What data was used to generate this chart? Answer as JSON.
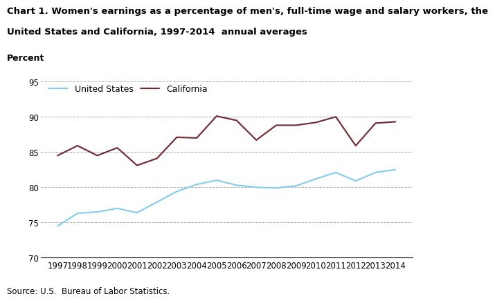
{
  "title_line1": "Chart 1. Women's earnings as a percentage of men's, full-time wage and salary workers, the",
  "title_line2": "United States and California, 1997-2014  annual averages",
  "ylabel": "Percent",
  "source": "Source: U.S.  Bureau of Labor Statistics.",
  "years": [
    1997,
    1998,
    1999,
    2000,
    2001,
    2002,
    2003,
    2004,
    2005,
    2006,
    2007,
    2008,
    2009,
    2010,
    2011,
    2012,
    2013,
    2014
  ],
  "us_values": [
    74.5,
    76.3,
    76.5,
    77.0,
    76.4,
    77.9,
    79.4,
    80.4,
    81.0,
    80.3,
    80.0,
    79.9,
    80.2,
    81.2,
    82.1,
    80.9,
    82.1,
    82.5
  ],
  "ca_values": [
    84.5,
    85.9,
    84.5,
    85.6,
    83.1,
    84.1,
    87.1,
    87.0,
    90.1,
    89.5,
    86.7,
    88.8,
    88.8,
    89.2,
    90.0,
    85.9,
    89.1,
    89.3
  ],
  "us_color": "#87CEEB",
  "ca_color": "#722F37",
  "us_label": "United States",
  "ca_label": "California",
  "ylim": [
    70,
    96
  ],
  "yticks": [
    70,
    75,
    80,
    85,
    90,
    95
  ],
  "grid_color": "#aaaaaa",
  "background_color": "#ffffff",
  "title_fontsize": 9.5,
  "percent_fontsize": 9,
  "tick_fontsize": 8.5,
  "legend_fontsize": 9,
  "source_fontsize": 8.5,
  "line_width": 1.6
}
